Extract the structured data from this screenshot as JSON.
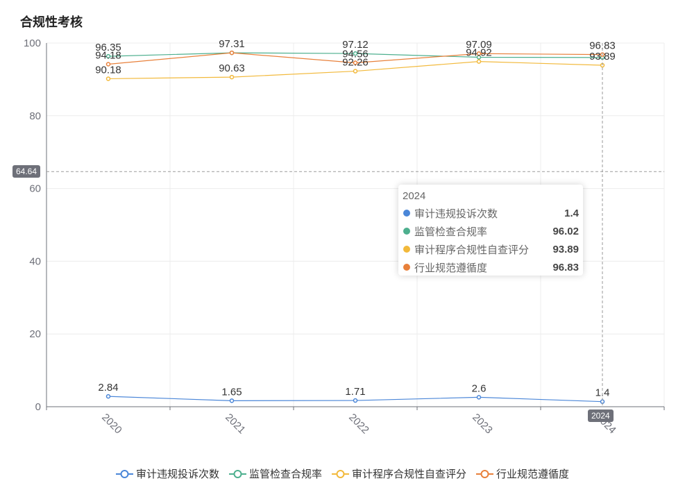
{
  "chart_data": {
    "type": "line",
    "title": "合规性考核",
    "categories": [
      "2020",
      "2021",
      "2022",
      "2023",
      "2024"
    ],
    "ylim": [
      0,
      100
    ],
    "yticks": [
      0,
      20,
      40,
      60,
      80,
      100
    ],
    "grid": true,
    "legend_position": "bottom",
    "series": [
      {
        "name": "审计违规投诉次数",
        "color": "#4a86d8",
        "values": [
          2.84,
          1.65,
          1.71,
          2.6,
          1.4
        ]
      },
      {
        "name": "监管检查合规率",
        "color": "#4daf8e",
        "values": [
          96.35,
          97.31,
          97.12,
          96.09,
          96.02
        ]
      },
      {
        "name": "审计程序合规性自查评分",
        "color": "#f2b93b",
        "values": [
          90.18,
          90.63,
          92.26,
          94.92,
          93.89
        ]
      },
      {
        "name": "行业规范遵循度",
        "color": "#e8803a",
        "values": [
          94.18,
          97.31,
          94.56,
          97.09,
          96.83
        ]
      }
    ],
    "data_labels": [
      {
        "series": 0,
        "labels": [
          "2.84",
          "1.65",
          "1.71",
          "2.6",
          "1.4"
        ]
      },
      {
        "series": 1,
        "labels": [
          "96.35",
          "",
          "97.12",
          "",
          ""
        ]
      },
      {
        "series": 2,
        "labels": [
          "90.18",
          "90.63",
          "92.26",
          "94.92",
          "93.89"
        ]
      },
      {
        "series": 3,
        "labels": [
          "94.18",
          "97.31",
          "94.56",
          "97.09",
          "96.83"
        ]
      }
    ],
    "crosshair": {
      "y_value_label": "64.64",
      "x_category_label": "2024"
    }
  },
  "tooltip": {
    "title": "2024",
    "rows": [
      {
        "name": "审计违规投诉次数",
        "value": "1.4",
        "color": "#4a86d8"
      },
      {
        "name": "监管检查合规率",
        "value": "96.02",
        "color": "#4daf8e"
      },
      {
        "name": "审计程序合规性自查评分",
        "value": "93.89",
        "color": "#f2b93b"
      },
      {
        "name": "行业规范遵循度",
        "value": "96.83",
        "color": "#e8803a"
      }
    ]
  }
}
